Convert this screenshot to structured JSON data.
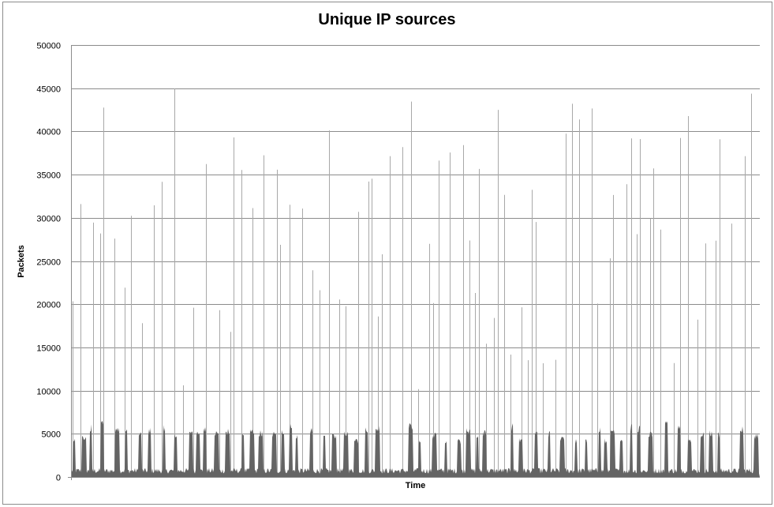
{
  "chart_data": {
    "type": "area",
    "title": "Unique IP sources",
    "xlabel": "Time",
    "ylabel": "Packets",
    "ylim": [
      0,
      50000
    ],
    "yticks": [
      "0",
      "5000",
      "10000",
      "15000",
      "20000",
      "25000",
      "30000",
      "35000",
      "40000",
      "45000",
      "50000"
    ],
    "grid": true,
    "legend": "none",
    "series_color": "#646464",
    "spike_color": "#a8a8a8",
    "description_of_values": "Approximately 4700 sequential samples; baseline around 500-1500 packets with repeated bursts near 5000-6500 and isolated spikes up to about 45000.",
    "values_sample": {
      "peaks": [
        45000,
        45000,
        41000,
        40500,
        44800,
        43000,
        45500,
        40000,
        41800,
        40200,
        38700
      ],
      "typical_burst": 5500,
      "typical_baseline": 800
    }
  }
}
